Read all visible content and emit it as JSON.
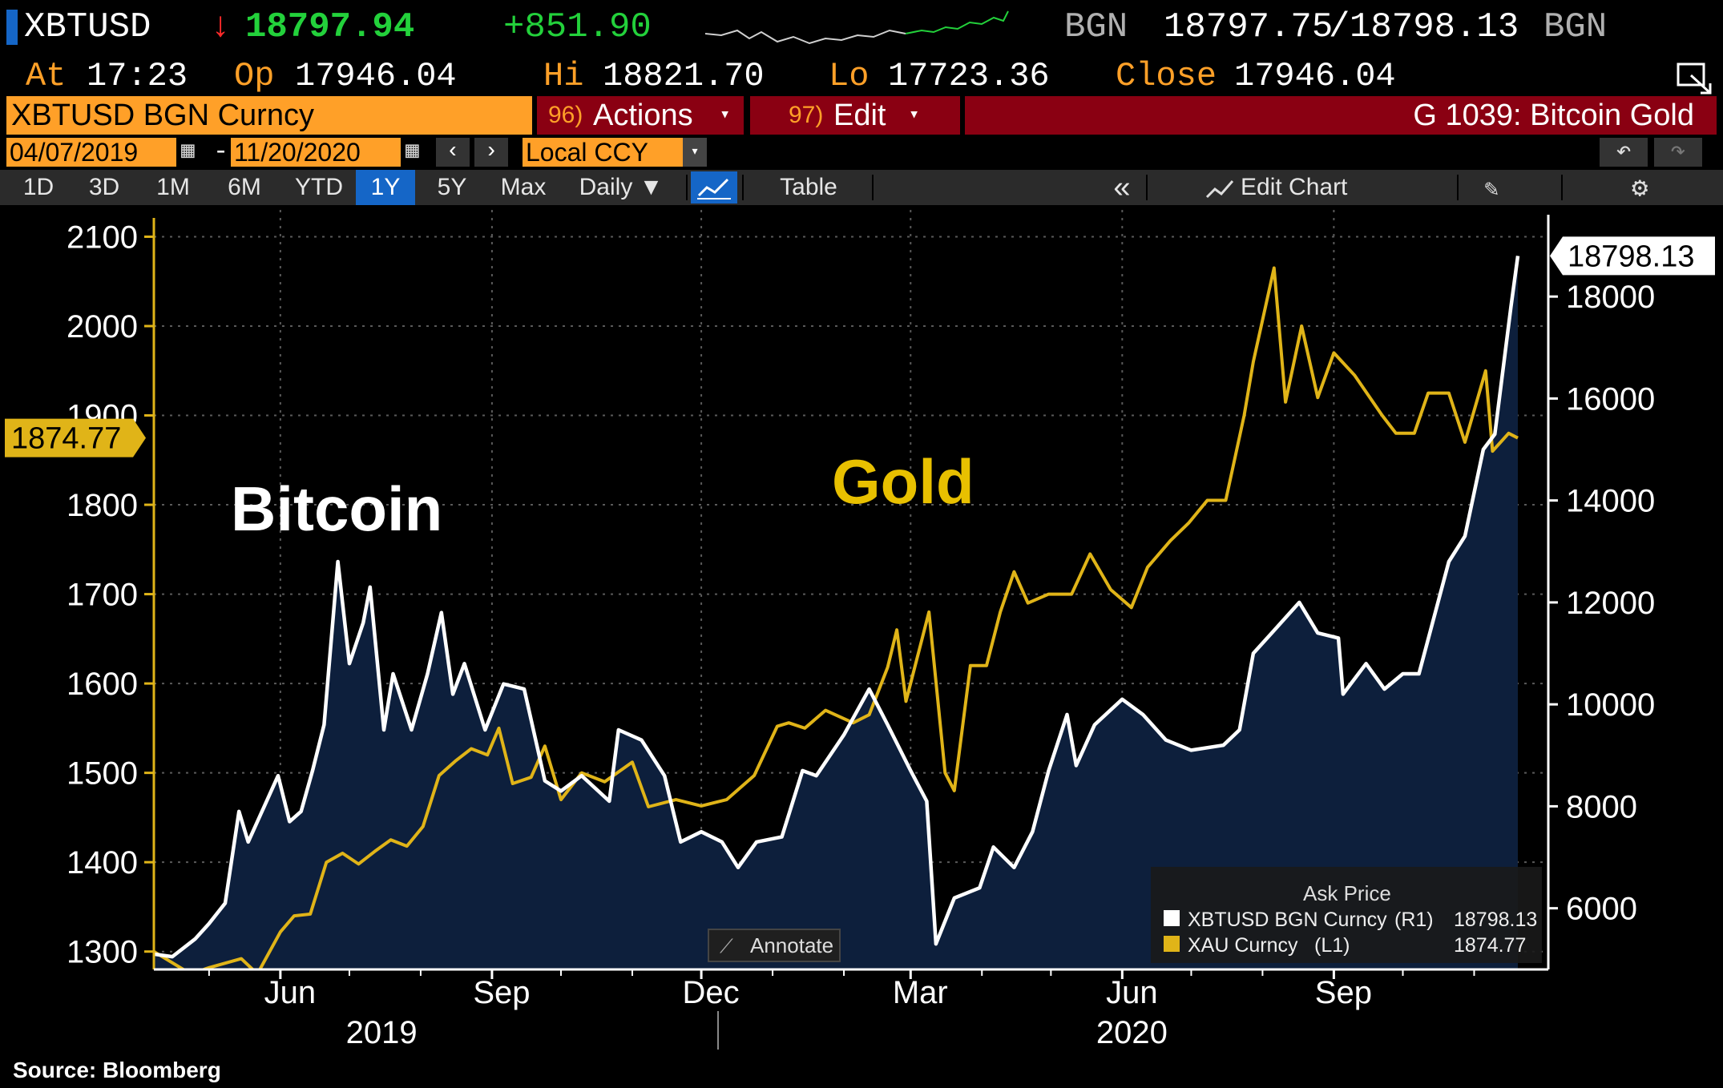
{
  "header": {
    "ticker": "XBTUSD",
    "direction_icon": "down-arrow-icon",
    "last_price": "18797.94",
    "change": "+851.90",
    "source1": "BGN",
    "bid": "18797.75",
    "slash": "/",
    "ask": "18798.13",
    "source2": "BGN",
    "at_label": "At",
    "time": "17:23",
    "open_label": "Op",
    "open": "17946.04",
    "high_label": "Hi",
    "high": "18821.70",
    "low_label": "Lo",
    "low": "17723.36",
    "close_label": "Close",
    "close": "17946.04"
  },
  "command_bar": {
    "security": "XBTUSD BGN Curncy",
    "actions_num": "96)",
    "actions_label": "Actions",
    "edit_num": "97)",
    "edit_label": "Edit",
    "page_title": "G 1039: Bitcoin Gold"
  },
  "date_bar": {
    "start_date": "04/07/2019",
    "dash": "-",
    "end_date": "11/20/2020",
    "currency": "Local CCY"
  },
  "tabs": [
    {
      "label": "1D"
    },
    {
      "label": "3D"
    },
    {
      "label": "1M"
    },
    {
      "label": "6M"
    },
    {
      "label": "YTD"
    },
    {
      "label": "1Y"
    },
    {
      "label": "5Y"
    },
    {
      "label": "Max"
    },
    {
      "label": "Daily ▼"
    }
  ],
  "toolbar": {
    "table_label": "Table",
    "collapse_label": "«",
    "edit_chart_label": "Edit Chart"
  },
  "colors": {
    "gold": "#e0b418",
    "bitcoin": "#ffffff",
    "area": "#0d1f3c",
    "orange": "#ffa028",
    "header_red": "#8a0012"
  },
  "chart_data": {
    "type": "line",
    "title": "",
    "annotations": [
      "Bitcoin",
      "Gold"
    ],
    "x_ticks": [
      "Jun",
      "Sep",
      "Dec",
      "Mar",
      "Jun",
      "Sep"
    ],
    "x_years": [
      "2019",
      "2020"
    ],
    "left_axis": {
      "ticks": [
        "1300",
        "1400",
        "1500",
        "1600",
        "1700",
        "1800",
        "1900",
        "2000",
        "2100"
      ],
      "range": [
        1280,
        2130
      ]
    },
    "right_axis": {
      "ticks": [
        "6000",
        "8000",
        "10000",
        "12000",
        "14000",
        "16000",
        "18000"
      ],
      "range": [
        4800,
        19700
      ]
    },
    "last_gold": "1874.77",
    "last_btc": "18798.13",
    "x_range": [
      "2019-04-07",
      "2020-11-20"
    ],
    "series": [
      {
        "name": "XBTUSD BGN Curncy",
        "axis": "right",
        "style": "line+area",
        "points": [
          [
            "2019-04-07",
            5100
          ],
          [
            "2019-04-15",
            5050
          ],
          [
            "2019-04-25",
            5400
          ],
          [
            "2019-05-01",
            5700
          ],
          [
            "2019-05-08",
            6100
          ],
          [
            "2019-05-14",
            7900
          ],
          [
            "2019-05-18",
            7300
          ],
          [
            "2019-05-25",
            8000
          ],
          [
            "2019-05-31",
            8600
          ],
          [
            "2019-06-05",
            7700
          ],
          [
            "2019-06-10",
            7900
          ],
          [
            "2019-06-15",
            8700
          ],
          [
            "2019-06-20",
            9600
          ],
          [
            "2019-06-26",
            12800
          ],
          [
            "2019-07-01",
            10800
          ],
          [
            "2019-07-07",
            11600
          ],
          [
            "2019-07-10",
            12300
          ],
          [
            "2019-07-16",
            9500
          ],
          [
            "2019-07-20",
            10600
          ],
          [
            "2019-07-28",
            9500
          ],
          [
            "2019-08-04",
            10600
          ],
          [
            "2019-08-10",
            11800
          ],
          [
            "2019-08-15",
            10200
          ],
          [
            "2019-08-20",
            10800
          ],
          [
            "2019-08-29",
            9500
          ],
          [
            "2019-09-06",
            10400
          ],
          [
            "2019-09-15",
            10300
          ],
          [
            "2019-09-24",
            8500
          ],
          [
            "2019-10-01",
            8300
          ],
          [
            "2019-10-10",
            8600
          ],
          [
            "2019-10-22",
            8100
          ],
          [
            "2019-10-26",
            9500
          ],
          [
            "2019-11-05",
            9300
          ],
          [
            "2019-11-15",
            8600
          ],
          [
            "2019-11-22",
            7300
          ],
          [
            "2019-12-01",
            7500
          ],
          [
            "2019-12-10",
            7300
          ],
          [
            "2019-12-17",
            6800
          ],
          [
            "2019-12-25",
            7300
          ],
          [
            "2020-01-05",
            7400
          ],
          [
            "2020-01-14",
            8700
          ],
          [
            "2020-01-20",
            8600
          ],
          [
            "2020-02-01",
            9400
          ],
          [
            "2020-02-12",
            10300
          ],
          [
            "2020-02-20",
            9600
          ],
          [
            "2020-03-01",
            8700
          ],
          [
            "2020-03-08",
            8100
          ],
          [
            "2020-03-12",
            5300
          ],
          [
            "2020-03-20",
            6200
          ],
          [
            "2020-03-31",
            6400
          ],
          [
            "2020-04-06",
            7200
          ],
          [
            "2020-04-15",
            6800
          ],
          [
            "2020-04-23",
            7500
          ],
          [
            "2020-04-30",
            8700
          ],
          [
            "2020-05-08",
            9800
          ],
          [
            "2020-05-12",
            8800
          ],
          [
            "2020-05-20",
            9600
          ],
          [
            "2020-06-01",
            10100
          ],
          [
            "2020-06-10",
            9800
          ],
          [
            "2020-06-20",
            9300
          ],
          [
            "2020-07-01",
            9100
          ],
          [
            "2020-07-15",
            9200
          ],
          [
            "2020-07-22",
            9500
          ],
          [
            "2020-07-28",
            11000
          ],
          [
            "2020-08-05",
            11400
          ],
          [
            "2020-08-17",
            12000
          ],
          [
            "2020-08-25",
            11400
          ],
          [
            "2020-09-03",
            11300
          ],
          [
            "2020-09-05",
            10200
          ],
          [
            "2020-09-15",
            10800
          ],
          [
            "2020-09-23",
            10300
          ],
          [
            "2020-10-01",
            10600
          ],
          [
            "2020-10-08",
            10600
          ],
          [
            "2020-10-21",
            12800
          ],
          [
            "2020-10-28",
            13300
          ],
          [
            "2020-11-05",
            15000
          ],
          [
            "2020-11-10",
            15300
          ],
          [
            "2020-11-17",
            17800
          ],
          [
            "2020-11-20",
            18798
          ]
        ]
      },
      {
        "name": "XAU Curncy",
        "axis": "left",
        "style": "line",
        "points": [
          [
            "2019-04-07",
            1300
          ],
          [
            "2019-04-23",
            1275
          ],
          [
            "2019-05-01",
            1282
          ],
          [
            "2019-05-15",
            1292
          ],
          [
            "2019-05-22",
            1275
          ],
          [
            "2019-06-01",
            1322
          ],
          [
            "2019-06-07",
            1340
          ],
          [
            "2019-06-14",
            1342
          ],
          [
            "2019-06-21",
            1400
          ],
          [
            "2019-06-28",
            1410
          ],
          [
            "2019-07-05",
            1398
          ],
          [
            "2019-07-12",
            1412
          ],
          [
            "2019-07-19",
            1425
          ],
          [
            "2019-07-26",
            1418
          ],
          [
            "2019-08-02",
            1440
          ],
          [
            "2019-08-09",
            1497
          ],
          [
            "2019-08-16",
            1513
          ],
          [
            "2019-08-23",
            1527
          ],
          [
            "2019-08-30",
            1520
          ],
          [
            "2019-09-04",
            1550
          ],
          [
            "2019-09-10",
            1488
          ],
          [
            "2019-09-18",
            1495
          ],
          [
            "2019-09-24",
            1530
          ],
          [
            "2019-10-01",
            1470
          ],
          [
            "2019-10-10",
            1500
          ],
          [
            "2019-10-20",
            1490
          ],
          [
            "2019-11-01",
            1512
          ],
          [
            "2019-11-08",
            1462
          ],
          [
            "2019-11-20",
            1470
          ],
          [
            "2019-12-01",
            1463
          ],
          [
            "2019-12-12",
            1470
          ],
          [
            "2019-12-24",
            1497
          ],
          [
            "2020-01-03",
            1552
          ],
          [
            "2020-01-08",
            1556
          ],
          [
            "2020-01-15",
            1550
          ],
          [
            "2020-01-24",
            1570
          ],
          [
            "2020-02-05",
            1556
          ],
          [
            "2020-02-12",
            1565
          ],
          [
            "2020-02-20",
            1618
          ],
          [
            "2020-02-24",
            1660
          ],
          [
            "2020-02-28",
            1580
          ],
          [
            "2020-03-09",
            1680
          ],
          [
            "2020-03-16",
            1500
          ],
          [
            "2020-03-20",
            1480
          ],
          [
            "2020-03-27",
            1620
          ],
          [
            "2020-04-03",
            1620
          ],
          [
            "2020-04-09",
            1680
          ],
          [
            "2020-04-15",
            1725
          ],
          [
            "2020-04-21",
            1690
          ],
          [
            "2020-04-30",
            1700
          ],
          [
            "2020-05-10",
            1700
          ],
          [
            "2020-05-18",
            1745
          ],
          [
            "2020-05-27",
            1705
          ],
          [
            "2020-06-05",
            1685
          ],
          [
            "2020-06-12",
            1730
          ],
          [
            "2020-06-22",
            1760
          ],
          [
            "2020-06-30",
            1780
          ],
          [
            "2020-07-08",
            1805
          ],
          [
            "2020-07-16",
            1805
          ],
          [
            "2020-07-24",
            1900
          ],
          [
            "2020-07-28",
            1960
          ],
          [
            "2020-08-06",
            2065
          ],
          [
            "2020-08-11",
            1915
          ],
          [
            "2020-08-18",
            2000
          ],
          [
            "2020-08-25",
            1920
          ],
          [
            "2020-09-01",
            1970
          ],
          [
            "2020-09-10",
            1945
          ],
          [
            "2020-09-22",
            1900
          ],
          [
            "2020-09-28",
            1880
          ],
          [
            "2020-10-06",
            1880
          ],
          [
            "2020-10-12",
            1925
          ],
          [
            "2020-10-21",
            1925
          ],
          [
            "2020-10-28",
            1870
          ],
          [
            "2020-11-06",
            1950
          ],
          [
            "2020-11-09",
            1860
          ],
          [
            "2020-11-16",
            1880
          ],
          [
            "2020-11-20",
            1874.77
          ]
        ]
      }
    ],
    "legend": {
      "title": "Ask Price",
      "placement": "bottom-right",
      "entries": [
        {
          "label": "XBTUSD BGN Curncy",
          "axis_tag": "(R1)",
          "value": "18798.13",
          "color": "#ffffff"
        },
        {
          "label": "XAU Curncy",
          "axis_tag": "(L1)",
          "value": "1874.77",
          "color": "#e0b418"
        }
      ]
    },
    "annotate_label": "Annotate",
    "source": "Source: Bloomberg"
  }
}
